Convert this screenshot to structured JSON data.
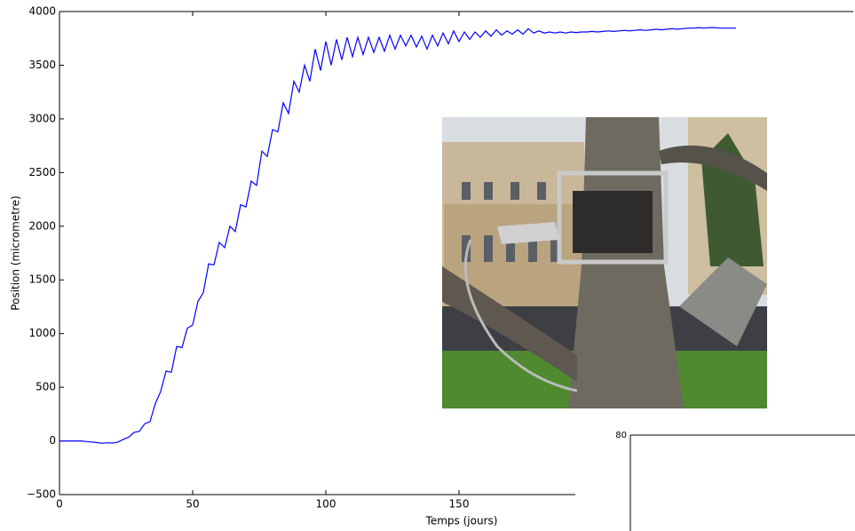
{
  "chart_data": [
    {
      "type": "line",
      "xlabel": "Temps (jours)",
      "ylabel": "Position (micrometre)",
      "x": [
        0,
        2,
        4,
        6,
        8,
        10,
        12,
        14,
        16,
        18,
        20,
        22,
        24,
        26,
        28,
        30,
        32,
        34,
        36,
        38,
        40,
        42,
        44,
        46,
        48,
        50,
        52,
        54,
        56,
        58,
        60,
        62,
        64,
        66,
        68,
        70,
        72,
        74,
        76,
        78,
        80,
        82,
        84,
        86,
        88,
        90,
        92,
        94,
        96,
        98,
        100,
        102,
        104,
        106,
        108,
        110,
        112,
        114,
        116,
        118,
        120,
        122,
        124,
        126,
        128,
        130,
        132,
        134,
        136,
        138,
        140,
        142,
        144,
        146,
        148,
        150,
        152,
        154,
        156,
        158,
        160,
        162,
        164,
        166,
        168,
        170,
        172,
        174,
        176,
        178,
        180,
        182,
        184,
        186,
        188,
        190,
        192,
        194,
        196,
        198,
        200,
        202,
        204,
        206,
        208,
        210,
        212,
        214,
        216,
        218,
        220,
        222,
        224,
        226,
        228,
        230,
        232,
        234,
        236,
        238,
        240,
        242,
        244,
        246,
        248,
        250,
        252,
        254
      ],
      "series": [
        {
          "color": "#0000ff",
          "values": [
            0,
            0,
            0,
            0,
            0,
            -5,
            -10,
            -15,
            -22,
            -18,
            -20,
            -10,
            15,
            35,
            80,
            90,
            160,
            180,
            350,
            460,
            650,
            640,
            880,
            870,
            1050,
            1080,
            1300,
            1380,
            1650,
            1640,
            1850,
            1800,
            2000,
            1950,
            2200,
            2180,
            2420,
            2380,
            2700,
            2650,
            2900,
            2880,
            3150,
            3050,
            3350,
            3250,
            3500,
            3350,
            3650,
            3450,
            3720,
            3500,
            3740,
            3550,
            3760,
            3580,
            3760,
            3600,
            3760,
            3620,
            3760,
            3630,
            3780,
            3650,
            3780,
            3680,
            3780,
            3670,
            3770,
            3650,
            3780,
            3680,
            3800,
            3700,
            3820,
            3720,
            3810,
            3740,
            3810,
            3760,
            3820,
            3770,
            3830,
            3780,
            3820,
            3790,
            3830,
            3790,
            3840,
            3800,
            3820,
            3800,
            3810,
            3800,
            3810,
            3800,
            3810,
            3805,
            3810,
            3810,
            3815,
            3810,
            3815,
            3820,
            3815,
            3820,
            3825,
            3820,
            3825,
            3830,
            3825,
            3830,
            3835,
            3830,
            3835,
            3840,
            3835,
            3840,
            3845,
            3845,
            3850,
            3845,
            3850,
            3850,
            3845,
            3845,
            3845,
            3845
          ]
        }
      ],
      "xlim": [
        0,
        298
      ],
      "ylim": [
        -500,
        4000
      ],
      "xticks": [
        0,
        50,
        100,
        150
      ],
      "yticks": [
        {
          "value": -500,
          "label": "−500"
        },
        0,
        500,
        1000,
        1500,
        2000,
        2500,
        3000,
        3500,
        4000
      ]
    },
    {
      "type": "line",
      "yticks": [
        80
      ]
    }
  ]
}
